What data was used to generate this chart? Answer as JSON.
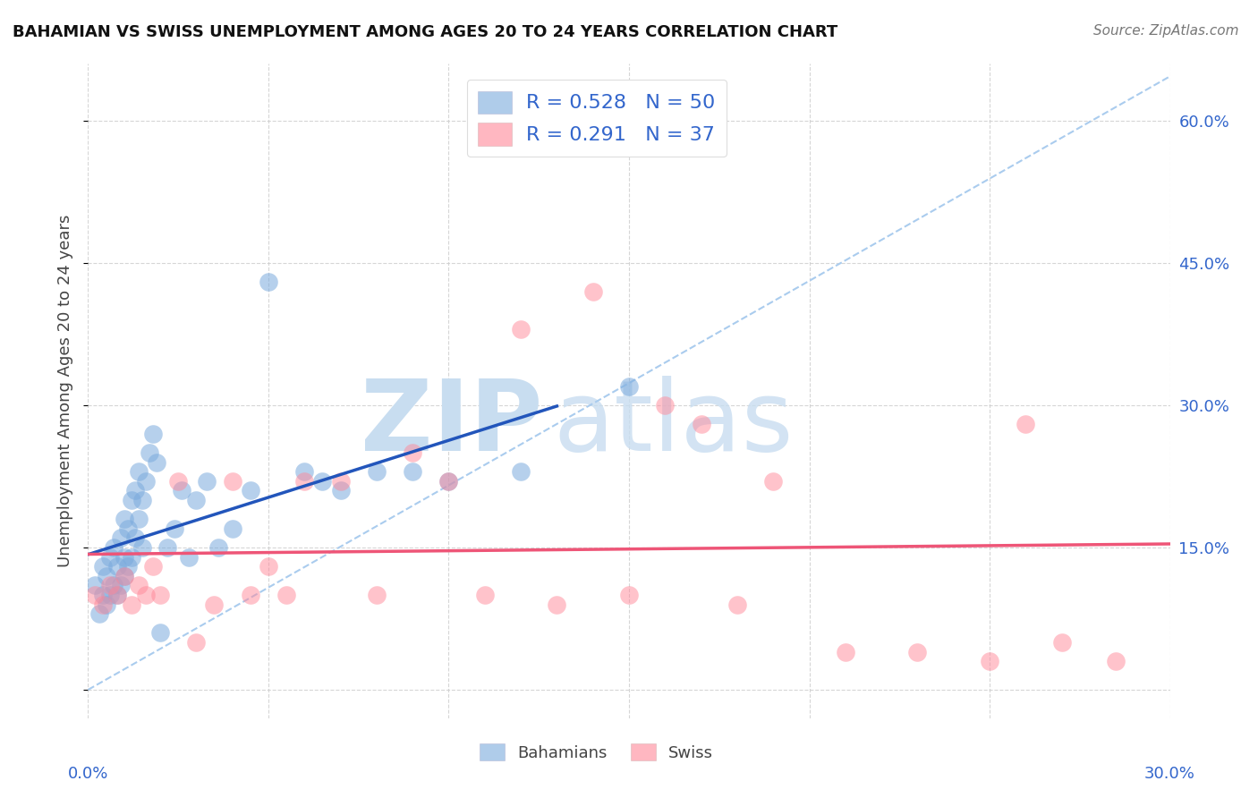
{
  "title": "BAHAMIAN VS SWISS UNEMPLOYMENT AMONG AGES 20 TO 24 YEARS CORRELATION CHART",
  "source": "Source: ZipAtlas.com",
  "ylabel_label": "Unemployment Among Ages 20 to 24 years",
  "xmin": 0.0,
  "xmax": 0.3,
  "ymin": -0.03,
  "ymax": 0.66,
  "ytick_positions": [
    0.0,
    0.15,
    0.3,
    0.45,
    0.6
  ],
  "ytick_labels": [
    "",
    "15.0%",
    "30.0%",
    "45.0%",
    "60.0%"
  ],
  "xtick_positions": [
    0.0,
    0.05,
    0.1,
    0.15,
    0.2,
    0.25,
    0.3
  ],
  "grid_color": "#cccccc",
  "background_color": "#ffffff",
  "bahamian_color": "#7aaadd",
  "swiss_color": "#ff8899",
  "bahamian_line_color": "#2255bb",
  "swiss_line_color": "#ee5577",
  "diagonal_color": "#aaccee",
  "bahamian_R": 0.528,
  "bahamian_N": 50,
  "swiss_R": 0.291,
  "swiss_N": 37,
  "legend_text_color": "#3366cc",
  "watermark_zip_color": "#c8ddf0",
  "watermark_atlas_color": "#c8ddf0",
  "bahamian_x": [
    0.002,
    0.003,
    0.004,
    0.004,
    0.005,
    0.005,
    0.006,
    0.006,
    0.007,
    0.007,
    0.008,
    0.008,
    0.009,
    0.009,
    0.01,
    0.01,
    0.01,
    0.011,
    0.011,
    0.012,
    0.012,
    0.013,
    0.013,
    0.014,
    0.014,
    0.015,
    0.015,
    0.016,
    0.017,
    0.018,
    0.019,
    0.02,
    0.022,
    0.024,
    0.026,
    0.028,
    0.03,
    0.033,
    0.036,
    0.04,
    0.045,
    0.05,
    0.06,
    0.065,
    0.07,
    0.08,
    0.09,
    0.1,
    0.12,
    0.15
  ],
  "bahamian_y": [
    0.11,
    0.08,
    0.1,
    0.13,
    0.09,
    0.12,
    0.1,
    0.14,
    0.11,
    0.15,
    0.1,
    0.13,
    0.11,
    0.16,
    0.12,
    0.14,
    0.18,
    0.13,
    0.17,
    0.14,
    0.2,
    0.16,
    0.21,
    0.18,
    0.23,
    0.15,
    0.2,
    0.22,
    0.25,
    0.27,
    0.24,
    0.06,
    0.15,
    0.17,
    0.21,
    0.14,
    0.2,
    0.22,
    0.15,
    0.17,
    0.21,
    0.43,
    0.23,
    0.22,
    0.21,
    0.23,
    0.23,
    0.22,
    0.23,
    0.32
  ],
  "swiss_x": [
    0.002,
    0.004,
    0.006,
    0.008,
    0.01,
    0.012,
    0.014,
    0.016,
    0.018,
    0.02,
    0.025,
    0.03,
    0.035,
    0.04,
    0.045,
    0.05,
    0.055,
    0.06,
    0.07,
    0.08,
    0.09,
    0.1,
    0.11,
    0.12,
    0.13,
    0.14,
    0.15,
    0.16,
    0.17,
    0.18,
    0.19,
    0.21,
    0.23,
    0.25,
    0.26,
    0.27,
    0.285
  ],
  "swiss_y": [
    0.1,
    0.09,
    0.11,
    0.1,
    0.12,
    0.09,
    0.11,
    0.1,
    0.13,
    0.1,
    0.22,
    0.05,
    0.09,
    0.22,
    0.1,
    0.13,
    0.1,
    0.22,
    0.22,
    0.1,
    0.25,
    0.22,
    0.1,
    0.38,
    0.09,
    0.42,
    0.1,
    0.3,
    0.28,
    0.09,
    0.22,
    0.04,
    0.04,
    0.03,
    0.28,
    0.05,
    0.03
  ]
}
